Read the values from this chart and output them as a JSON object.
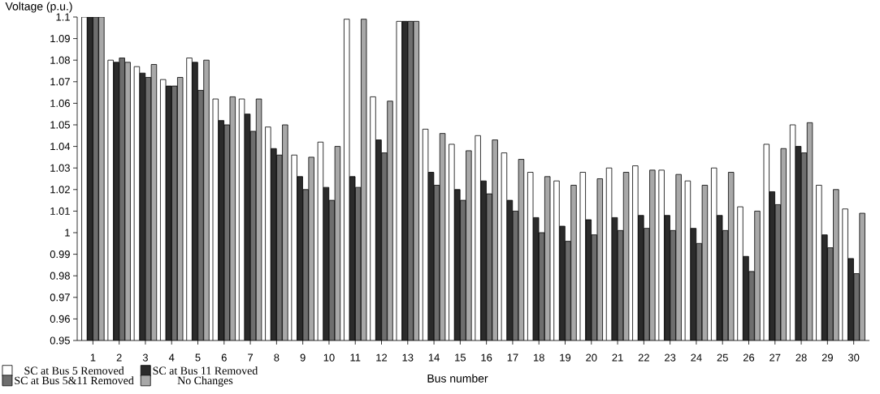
{
  "chart_data": {
    "type": "bar",
    "ylabel": "Voltage (p.u.)",
    "xlabel": "Bus number",
    "categories": [
      "1",
      "2",
      "3",
      "4",
      "5",
      "6",
      "7",
      "8",
      "9",
      "10",
      "11",
      "12",
      "13",
      "14",
      "15",
      "16",
      "17",
      "18",
      "19",
      "20",
      "21",
      "22",
      "23",
      "24",
      "25",
      "26",
      "27",
      "28",
      "29",
      "30"
    ],
    "series": [
      {
        "name": "SC at Bus 5 Removed",
        "color": "#ffffff",
        "values": [
          1.1,
          1.08,
          1.077,
          1.071,
          1.081,
          1.062,
          1.062,
          1.049,
          1.036,
          1.042,
          1.099,
          1.063,
          1.098,
          1.048,
          1.041,
          1.045,
          1.037,
          1.028,
          1.024,
          1.028,
          1.03,
          1.031,
          1.029,
          1.024,
          1.03,
          1.012,
          1.041,
          1.05,
          1.022,
          1.011
        ]
      },
      {
        "name": "SC at Bus 11 Removed",
        "color": "#2b2b2b",
        "values": [
          1.1,
          1.079,
          1.074,
          1.068,
          1.079,
          1.052,
          1.055,
          1.039,
          1.026,
          1.021,
          1.026,
          1.043,
          1.098,
          1.028,
          1.02,
          1.024,
          1.015,
          1.007,
          1.003,
          1.006,
          1.007,
          1.008,
          1.008,
          1.002,
          1.008,
          0.989,
          1.019,
          1.04,
          0.999,
          0.988
        ]
      },
      {
        "name": "SC at Bus 5&11 Removed",
        "color": "#6e6e6e",
        "values": [
          1.1,
          1.081,
          1.072,
          1.068,
          1.066,
          1.05,
          1.047,
          1.036,
          1.02,
          1.015,
          1.021,
          1.037,
          1.098,
          1.022,
          1.015,
          1.018,
          1.01,
          1.0,
          0.996,
          0.999,
          1.001,
          1.002,
          1.001,
          0.995,
          1.001,
          0.982,
          1.013,
          1.037,
          0.993,
          0.981
        ]
      },
      {
        "name": "No Changes",
        "color": "#a8a8a8",
        "values": [
          1.1,
          1.079,
          1.078,
          1.072,
          1.08,
          1.063,
          1.062,
          1.05,
          1.035,
          1.04,
          1.099,
          1.061,
          1.098,
          1.046,
          1.038,
          1.043,
          1.034,
          1.026,
          1.022,
          1.025,
          1.028,
          1.029,
          1.027,
          1.022,
          1.028,
          1.01,
          1.039,
          1.051,
          1.02,
          1.009
        ]
      }
    ],
    "ylim": [
      0.95,
      1.1
    ],
    "yticks": [
      0.95,
      0.96,
      0.97,
      0.98,
      0.99,
      1,
      1.01,
      1.02,
      1.03,
      1.04,
      1.05,
      1.06,
      1.07,
      1.08,
      1.09,
      1.1
    ],
    "grid": false,
    "legend": "bottom left"
  }
}
